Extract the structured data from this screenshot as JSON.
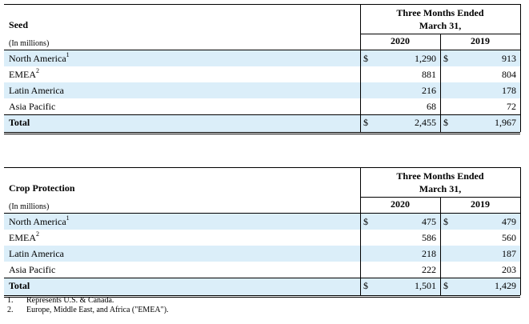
{
  "tables": [
    {
      "title": "Seed",
      "period_header": "Three Months Ended March 31,",
      "units": "(In millions)",
      "years": [
        "2020",
        "2019"
      ],
      "currency": "$",
      "rows": [
        {
          "label": "North America",
          "note": "1",
          "values": [
            "1,290",
            "913"
          ]
        },
        {
          "label": "EMEA",
          "note": "2",
          "values": [
            "881",
            "804"
          ]
        },
        {
          "label": "Latin America",
          "values": [
            "216",
            "178"
          ]
        },
        {
          "label": "Asia Pacific",
          "values": [
            "68",
            "72"
          ]
        },
        {
          "label": "Total",
          "values": [
            "2,455",
            "1,967"
          ]
        }
      ]
    },
    {
      "title": "Crop Protection",
      "period_header": "Three Months Ended March 31,",
      "units": "(In millions)",
      "years": [
        "2020",
        "2019"
      ],
      "currency": "$",
      "rows": [
        {
          "label": "North America",
          "note": "1",
          "values": [
            "475",
            "479"
          ]
        },
        {
          "label": "EMEA",
          "note": "2",
          "values": [
            "586",
            "560"
          ]
        },
        {
          "label": "Latin America",
          "values": [
            "218",
            "187"
          ]
        },
        {
          "label": "Asia Pacific",
          "values": [
            "222",
            "203"
          ]
        },
        {
          "label": "Total",
          "values": [
            "1,501",
            "1,429"
          ]
        }
      ]
    }
  ],
  "footnotes": [
    {
      "number": "1.",
      "text": "Represents U.S. & Canada."
    },
    {
      "number": "2.",
      "text": "Europe, Middle East, and Africa (\"EMEA\")."
    }
  ]
}
